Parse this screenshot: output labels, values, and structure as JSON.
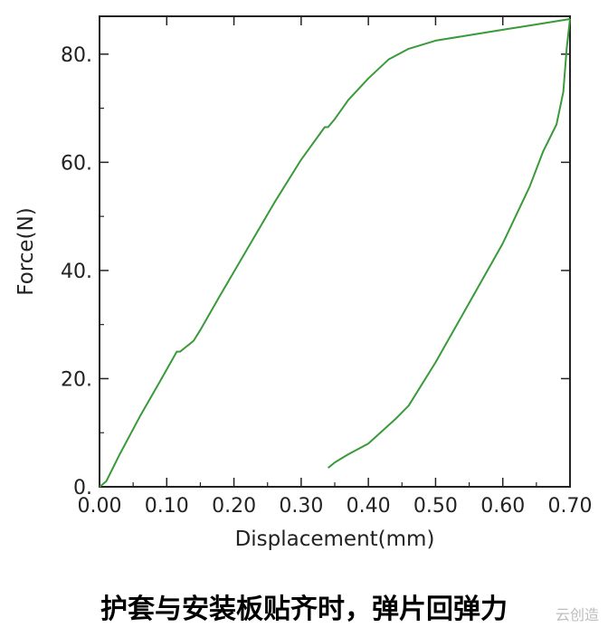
{
  "caption": "护套与安装板贴齐时，弹片回弹力",
  "watermark": "云创造",
  "colors": {
    "line": "#3a9a3a",
    "axis": "#222222"
  },
  "chart_data": {
    "type": "line",
    "title": "",
    "xlabel": "Displacement(mm)",
    "ylabel": "Force(N)",
    "xlim": [
      0.0,
      0.7
    ],
    "ylim": [
      0,
      87
    ],
    "xticks": [
      0.0,
      0.1,
      0.2,
      0.3,
      0.4,
      0.5,
      0.6,
      0.7
    ],
    "xtick_labels": [
      "0.00",
      "0.10",
      "0.20",
      "0.30",
      "0.40",
      "0.50",
      "0.60",
      "0.70"
    ],
    "yticks": [
      0,
      20,
      40,
      60,
      80
    ],
    "ytick_labels": [
      "0.",
      "20.",
      "40.",
      "60.",
      "80."
    ],
    "grid": false,
    "series": [
      {
        "x": [
          0.0,
          0.01,
          0.03,
          0.06,
          0.09,
          0.115,
          0.12,
          0.135,
          0.14,
          0.15,
          0.18,
          0.22,
          0.26,
          0.3,
          0.335,
          0.34,
          0.35,
          0.37,
          0.4,
          0.43,
          0.46,
          0.5,
          0.55,
          0.6,
          0.65,
          0.7
        ],
        "y": [
          0,
          1,
          6,
          13,
          19.5,
          25,
          25,
          26.5,
          27,
          29,
          35.5,
          44,
          52.5,
          60.5,
          66.5,
          66.5,
          68,
          71.5,
          75.5,
          79,
          81,
          82.5,
          83.5,
          84.5,
          85.5,
          86.5
        ]
      },
      {
        "x": [
          0.7,
          0.695,
          0.69,
          0.68,
          0.66,
          0.64,
          0.6,
          0.55,
          0.5,
          0.46,
          0.44,
          0.4,
          0.37,
          0.35,
          0.34
        ],
        "y": [
          86.5,
          81,
          73,
          67,
          62,
          55.5,
          45,
          34,
          23,
          15,
          12.5,
          8,
          6,
          4.5,
          3.5
        ]
      }
    ]
  }
}
